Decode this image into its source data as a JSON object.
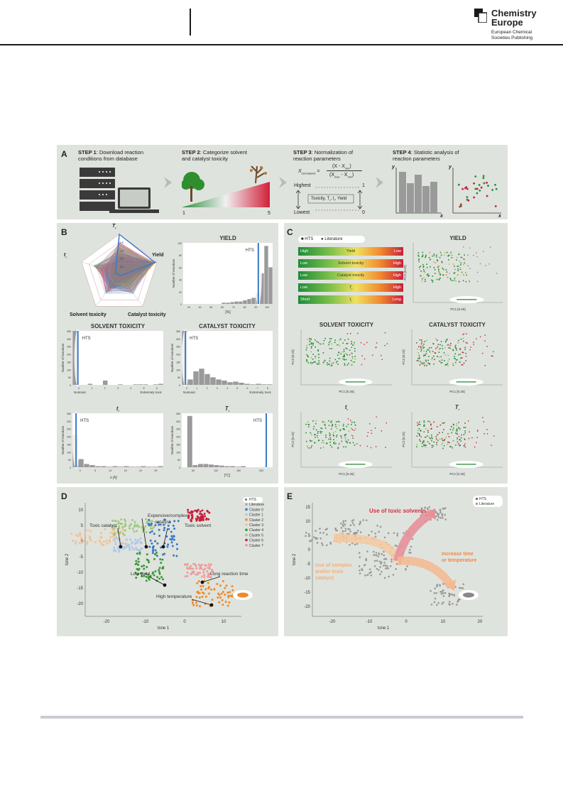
{
  "header": {
    "logo": {
      "line1": "Chemistry",
      "line2": "Europe",
      "line3": "European Chemical",
      "line4": "Societies Publishing"
    }
  },
  "figure": {
    "panelA": {
      "label": "A",
      "step1_bold": "STEP 1",
      "step1_text": ": Download reaction",
      "step1_text2": "conditions from database",
      "step2_bold": "STEP 2",
      "step2_text": ": Categorize solvent",
      "step2_text2": "and catalyst toxicity",
      "step3_bold": "STEP 3",
      "step3_text": ": Normalization of",
      "step3_text2": "reaction parameters",
      "step4_bold": "STEP 4",
      "step4_text": ": Statistic analysis of",
      "step4_text2": "reaction parameters",
      "scale_low": "1",
      "scale_high": "5",
      "formula_lhs": "X",
      "formula_lhs_sub": "normalized",
      "formula_num": "(X - X",
      "formula_num_sub": "min",
      "formula_den": "(X",
      "formula_den_sub1": "max",
      "formula_den_mid": " - X",
      "formula_den_sub2": "min",
      "highest": "Highest",
      "lowest": "Lowest",
      "one": "1",
      "zero": "0",
      "boxtext": "Toxicity, T",
      "boxtext_sub": "r",
      "boxtext2": ", t",
      "boxtext2_sub": "r",
      "boxtext3": ", Yield",
      "axis_y": "y",
      "axis_x": "x"
    },
    "panelB": {
      "label": "B",
      "radar_tr": "T",
      "radar_tr_sub": "r",
      "radar_yield": "Yield",
      "radar_t": "t",
      "radar_t_sub": "r",
      "radar_solvent": "Solvent toxicity",
      "radar_catalyst": "Catalyst toxicity",
      "radar_ticks": [
        "0.8",
        "0.6",
        "0.4",
        "0.2"
      ],
      "yield_title": "YIELD",
      "yield_hts": "HTS",
      "yield_ylabel": "Number of reactions",
      "yield_xlabel": "[%]",
      "yield_yticks": [
        "100",
        "80",
        "60",
        "40",
        "20",
        "0"
      ],
      "yield_xticks": [
        "30",
        "40",
        "50",
        "60",
        "70",
        "80",
        "90",
        "100"
      ],
      "solvent_title": "SOLVENT TOXICITY",
      "solvent_hts": "HTS",
      "solvent_ylabel": "Number of reactions",
      "solvent_xl": "Nontoxic",
      "solvent_xr": "Extremely toxic",
      "solvent_yticks": [
        "350",
        "300",
        "250",
        "200",
        "150",
        "100",
        "50",
        "0"
      ],
      "solvent_xticks": [
        "0",
        "1",
        "2",
        "3",
        "4",
        "5",
        "6"
      ],
      "catalyst_title": "CATALYST TOXICITY",
      "catalyst_hts": "HTS",
      "catalyst_ylabel": "Number of reactions",
      "catalyst_xl": "Nontoxic",
      "catalyst_xr": "Extremely toxic",
      "catalyst_yticks": [
        "350",
        "300",
        "250",
        "200",
        "150",
        "100",
        "50",
        "0"
      ],
      "catalyst_xticks": [
        "0",
        "1",
        "2",
        "3",
        "4",
        "5",
        "6",
        "7",
        "8"
      ],
      "tr_title": "t",
      "tr_title_sub": "r",
      "tr_hts": "HTS",
      "tr_ylabel": "Number of reactions",
      "tr_xlabel": "t",
      "tr_xlabel_sub": "r",
      "tr_xlabel_unit": " [h]",
      "tr_yticks": [
        "350",
        "300",
        "250",
        "200",
        "150",
        "100",
        "50",
        "0"
      ],
      "tr_xticks": [
        "0",
        "5",
        "10",
        "15",
        "20",
        "25"
      ],
      "Tr_title": "T",
      "Tr_title_sub": "r",
      "Tr_hts": "HTS",
      "Tr_ylabel": "Number of reactions",
      "Tr_xlabel": "[°C]",
      "Tr_yticks": [
        "350",
        "300",
        "250",
        "200",
        "150",
        "100",
        "50",
        "0"
      ],
      "Tr_xticks": [
        "50",
        "100",
        "150",
        "200"
      ]
    },
    "panelC": {
      "label": "C",
      "legend_hts": "HTS",
      "legend_lit": "Literature",
      "rows": [
        {
          "left": "High",
          "mid": "Yield",
          "right": "Low"
        },
        {
          "left": "Low",
          "mid": "Solvent toxicity",
          "right": "High"
        },
        {
          "left": "Low",
          "mid": "Catalyst toxicity",
          "right": "High"
        },
        {
          "left": "Low",
          "mid": "T",
          "mid_sub": "r",
          "right": "High"
        },
        {
          "left": "Short",
          "mid": "t",
          "mid_sub": "r",
          "right": "Long"
        }
      ],
      "yield_title": "YIELD",
      "solvent_title": "SOLVENT TOXICITY",
      "catalyst_title": "CATALYST TOXICITY",
      "tr_title": "t",
      "tr_title_sub": "r",
      "Tr_title": "T",
      "Tr_title_sub": "r",
      "pc1": "PC1 [0.26]",
      "pc2": "PC2 [0.22]"
    },
    "panelD": {
      "label": "D",
      "legend": [
        "HTS",
        "Literature",
        "Cluster 0",
        "Cluster 1",
        "Cluster 2",
        "Cluster 3",
        "Cluster 4",
        "Cluster 5",
        "Cluster 6",
        "Cluster 7"
      ],
      "ann_toxic_catalyst": "Toxic catalyst",
      "ann_expensive": "Expensive/complex",
      "ann_expensive2": "catalyst",
      "ann_toxic_solvent": "Toxic solvent",
      "ann_long": "Long reaction time",
      "ann_low_yield": "Low yield",
      "ann_high_temp": "High temperature",
      "xlabel": "tsne 1",
      "ylabel": "tsne 2",
      "xticks": [
        "-20",
        "-10",
        "0",
        "10"
      ],
      "yticks": [
        "10",
        "5",
        "0",
        "-5",
        "-10",
        "-15",
        "-20"
      ]
    },
    "panelE": {
      "label": "E",
      "legend_hts": "HTS",
      "legend_lit": "Literature",
      "ann_toxic_solvents": "Use of toxic solvents",
      "ann_complex1": "Use of complex",
      "ann_complex2": "and/or toxic",
      "ann_complex3": "catalyst",
      "ann_time1": "Increase time",
      "ann_time2": "or temperature",
      "xlabel": "tsne 1",
      "ylabel": "tsne 2",
      "xticks": [
        "-20",
        "-10",
        "0",
        "10",
        "20"
      ],
      "yticks": [
        "15",
        "10",
        "5",
        "0",
        "-5",
        "-10",
        "-15",
        "-20"
      ]
    }
  },
  "colors": {
    "panel_bg": "#dfe3dd",
    "accent_blue": "#3a78c8",
    "green": "#2a8a3a",
    "red": "#c8203a",
    "orange": "#f08a2a",
    "header_line": "#1a1a1a"
  }
}
